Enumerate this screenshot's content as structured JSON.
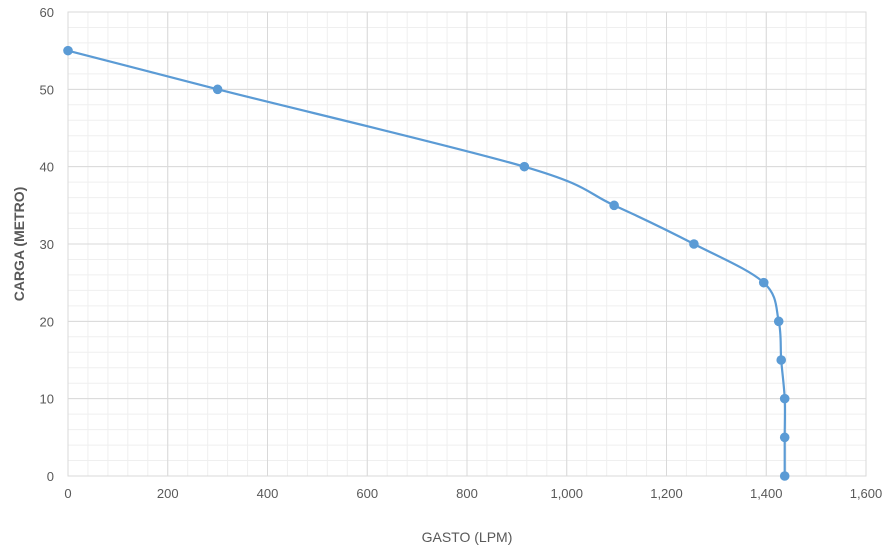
{
  "chart_data": {
    "type": "line",
    "xlabel": "GASTO (LPM)",
    "ylabel": "CARGA (METRO)",
    "xlim": [
      0,
      1600
    ],
    "ylim": [
      0,
      60
    ],
    "x_ticks": [
      0,
      200,
      400,
      600,
      800,
      1000,
      1200,
      1400,
      1600
    ],
    "x_tick_labels": [
      "0",
      "200",
      "400",
      "600",
      "800",
      "1,000",
      "1,200",
      "1,400",
      "1,600"
    ],
    "y_ticks": [
      0,
      10,
      20,
      30,
      40,
      50,
      60
    ],
    "y_tick_labels": [
      "0",
      "10",
      "20",
      "30",
      "40",
      "50",
      "60"
    ],
    "grid": true,
    "minor_grid": true,
    "legend": "none",
    "series_color": "#5B9BD5",
    "grid_major_color": "#D9D9D9",
    "grid_minor_color": "#EFEFEF",
    "series": [
      {
        "x": [
          0,
          300,
          915,
          1095,
          1255,
          1395,
          1425,
          1430,
          1437,
          1437,
          1437
        ],
        "y": [
          55,
          50,
          40,
          35,
          30,
          25,
          20,
          15,
          10,
          5,
          0
        ]
      }
    ]
  }
}
